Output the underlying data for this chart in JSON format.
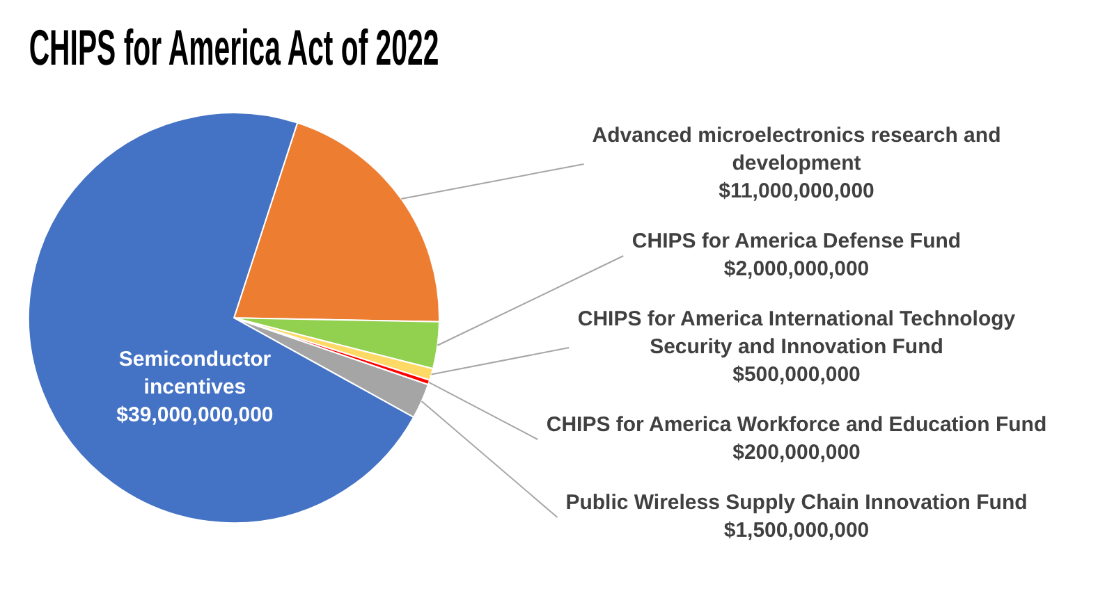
{
  "chart_data": {
    "type": "pie",
    "title": "CHIPS for America Act of 2022",
    "categories": [
      "Advanced microelectronics research and development",
      "CHIPS for America Defense Fund",
      "CHIPS for America International Technology Security and Innovation Fund",
      "CHIPS for America Workforce and Education Fund",
      "Public Wireless Supply Chain Innovation Fund",
      "Semiconductor incentives"
    ],
    "values": [
      11000000000,
      2000000000,
      500000000,
      200000000,
      1500000000,
      39000000000
    ],
    "value_labels": [
      "$11,000,000,000",
      "$2,000,000,000",
      "$500,000,000",
      "$200,000,000",
      "$1,500,000,000",
      "$39,000,000,000"
    ],
    "colors": [
      "#ed7d31",
      "#92d050",
      "#ffd966",
      "#ff0000",
      "#a5a5a5",
      "#4472c4"
    ],
    "legend": false
  }
}
